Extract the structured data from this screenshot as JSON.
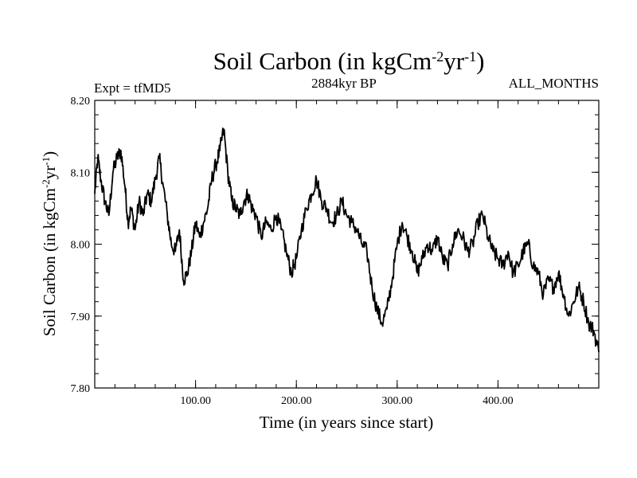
{
  "header": {
    "title_main": "Soil Carbon (in kgCm",
    "title_sup1": "-2",
    "title_mid": "yr",
    "title_sup2": "-1",
    "title_end": ")",
    "expt": "Expt = tfMD5",
    "epoch": "2884kyr BP",
    "months": "ALL_MONTHS"
  },
  "chart_data": {
    "type": "line",
    "title": "Soil Carbon (in kgCm-2yr-1)",
    "xlabel": "Time (in years since start)",
    "ylabel": "Soil Carbon (in kgCm-2yr-1)",
    "xlim": [
      0,
      500
    ],
    "ylim": [
      7.8,
      8.2
    ],
    "xticks": [
      100,
      200,
      300,
      400
    ],
    "xtick_labels": [
      "100.00",
      "200.00",
      "300.00",
      "400.00"
    ],
    "yticks": [
      7.8,
      7.9,
      8.0,
      8.1,
      8.2
    ],
    "ytick_labels": [
      "7.80",
      "7.90",
      "8.00",
      "8.10",
      "8.20"
    ],
    "grid": false,
    "series": [
      {
        "name": "Soil Carbon",
        "x": [
          0,
          3,
          6,
          10,
          14,
          18,
          22,
          26,
          30,
          33,
          36,
          40,
          44,
          48,
          52,
          56,
          60,
          64,
          68,
          72,
          76,
          80,
          84,
          88,
          92,
          96,
          100,
          104,
          108,
          112,
          116,
          120,
          124,
          128,
          132,
          136,
          140,
          144,
          148,
          152,
          156,
          160,
          165,
          170,
          175,
          180,
          185,
          190,
          195,
          200,
          205,
          210,
          215,
          220,
          225,
          230,
          235,
          240,
          245,
          250,
          255,
          260,
          265,
          270,
          275,
          280,
          285,
          290,
          295,
          300,
          305,
          310,
          315,
          320,
          325,
          330,
          335,
          340,
          345,
          350,
          355,
          360,
          365,
          370,
          375,
          380,
          385,
          390,
          395,
          400,
          405,
          410,
          415,
          420,
          425,
          430,
          435,
          440,
          445,
          450,
          455,
          460,
          465,
          470,
          475,
          480,
          485,
          490,
          495,
          500
        ],
        "values": [
          8.07,
          8.12,
          8.09,
          8.06,
          8.04,
          8.1,
          8.12,
          8.13,
          8.08,
          8.03,
          8.05,
          8.02,
          8.06,
          8.04,
          8.07,
          8.06,
          8.09,
          8.12,
          8.08,
          8.04,
          8.0,
          7.99,
          8.02,
          7.95,
          7.96,
          7.99,
          8.03,
          8.01,
          8.03,
          8.05,
          8.09,
          8.11,
          8.13,
          8.16,
          8.1,
          8.06,
          8.05,
          8.04,
          8.06,
          8.07,
          8.05,
          8.04,
          8.01,
          8.03,
          8.02,
          8.04,
          8.02,
          7.99,
          7.96,
          7.98,
          8.02,
          8.05,
          8.07,
          8.09,
          8.06,
          8.05,
          8.03,
          8.04,
          8.06,
          8.04,
          8.03,
          8.02,
          8.0,
          7.99,
          7.94,
          7.91,
          7.89,
          7.91,
          7.95,
          8.0,
          8.03,
          8.01,
          7.99,
          7.96,
          7.98,
          8.0,
          7.99,
          8.01,
          7.98,
          7.97,
          8.0,
          8.02,
          8.01,
          7.99,
          8.0,
          8.03,
          8.04,
          8.01,
          7.99,
          7.98,
          7.97,
          7.99,
          7.96,
          7.97,
          7.99,
          8.0,
          7.97,
          7.96,
          7.93,
          7.95,
          7.94,
          7.96,
          7.93,
          7.9,
          7.92,
          7.94,
          7.92,
          7.89,
          7.88,
          7.85
        ]
      }
    ]
  }
}
